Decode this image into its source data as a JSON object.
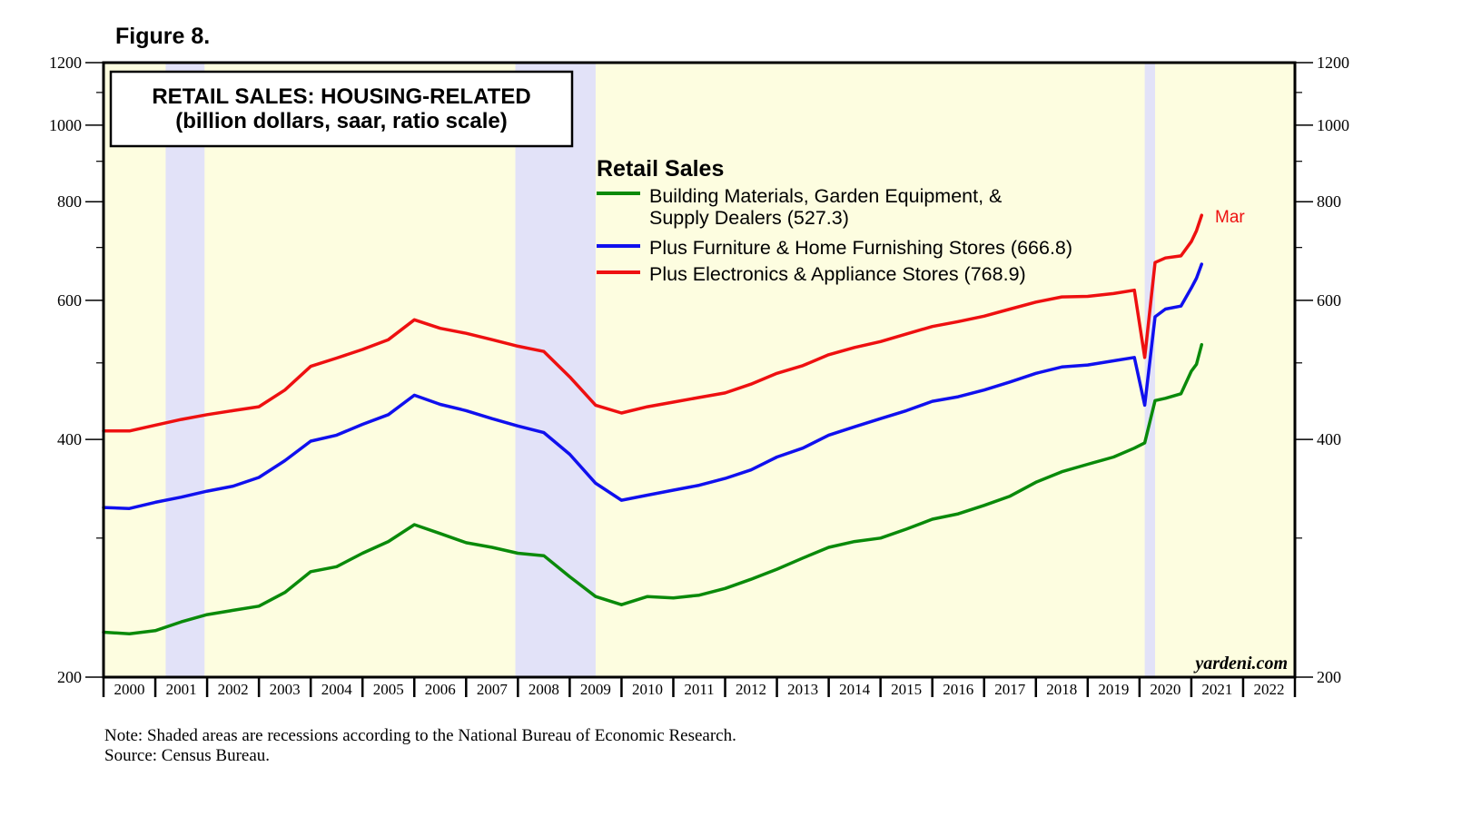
{
  "figure_label": "Figure 8.",
  "notes": {
    "line1": "Note: Shaded areas are recessions according to the National Bureau of Economic Research.",
    "line2": "Source: Census Bureau."
  },
  "colors": {
    "plot_background": "#fdfde0",
    "recession": "#e2e2f8",
    "building": "#0a8a0a",
    "furniture": "#1010ee",
    "electronics": "#ee1010"
  },
  "chart_data": {
    "type": "line",
    "title": "RETAIL SALES: HOUSING-RELATED",
    "subtitle": "(billion dollars, saar, ratio scale)",
    "legend_title": "Retail Sales",
    "yscale": "log",
    "ylim": [
      200,
      1200
    ],
    "xlim": [
      2000.0,
      2023.0
    ],
    "y_ticks_major": [
      200,
      400,
      600,
      800,
      1000,
      1200
    ],
    "y_ticks_minor": [
      300,
      500,
      700,
      900,
      1100
    ],
    "x_tick_labels": [
      "2000",
      "2001",
      "2002",
      "2003",
      "2004",
      "2005",
      "2006",
      "2007",
      "2008",
      "2009",
      "2010",
      "2011",
      "2012",
      "2013",
      "2014",
      "2015",
      "2016",
      "2017",
      "2018",
      "2019",
      "2020",
      "2021",
      "2022"
    ],
    "recessions": [
      [
        2001.2,
        2001.95
      ],
      [
        2007.95,
        2009.5
      ],
      [
        2020.1,
        2020.3
      ]
    ],
    "watermark": "yardeni.com",
    "end_label": "Mar",
    "x": [
      2000.0,
      2000.5,
      2001.0,
      2001.5,
      2002.0,
      2002.5,
      2003.0,
      2003.5,
      2004.0,
      2004.5,
      2005.0,
      2005.5,
      2006.0,
      2006.5,
      2007.0,
      2007.5,
      2008.0,
      2008.5,
      2009.0,
      2009.5,
      2010.0,
      2010.5,
      2011.0,
      2011.5,
      2012.0,
      2012.5,
      2013.0,
      2013.5,
      2014.0,
      2014.5,
      2015.0,
      2015.5,
      2016.0,
      2016.5,
      2017.0,
      2017.5,
      2018.0,
      2018.5,
      2019.0,
      2019.5,
      2019.9,
      2020.1,
      2020.3,
      2020.5,
      2020.8,
      2021.0,
      2021.1,
      2021.2
    ],
    "series": [
      {
        "name": "Building Materials, Garden Equipment, &",
        "name_line2": "Supply Dealers (527.3)",
        "color_key": "building",
        "values": [
          228,
          227,
          229,
          235,
          240,
          243,
          246,
          256,
          272,
          276,
          287,
          297,
          312,
          304,
          296,
          292,
          287,
          285,
          268,
          253,
          247,
          253,
          252,
          254,
          259,
          266,
          274,
          283,
          292,
          297,
          300,
          308,
          317,
          322,
          330,
          339,
          353,
          364,
          372,
          380,
          390,
          396,
          448,
          451,
          457,
          488,
          498,
          527.3
        ]
      },
      {
        "name": "Plus Furniture & Home Furnishing Stores (666.8)",
        "color_key": "furniture",
        "values": [
          328,
          327,
          333,
          338,
          344,
          349,
          358,
          376,
          398,
          405,
          418,
          430,
          455,
          443,
          435,
          425,
          416,
          408,
          383,
          352,
          335,
          340,
          345,
          350,
          357,
          366,
          380,
          390,
          405,
          415,
          425,
          435,
          447,
          453,
          462,
          473,
          485,
          494,
          497,
          503,
          508,
          442,
          572,
          585,
          590,
          622,
          640,
          666.8
        ]
      },
      {
        "name": "Plus Electronics & Appliance Stores (768.9)",
        "color_key": "electronics",
        "values": [
          410,
          410,
          417,
          424,
          430,
          435,
          440,
          462,
          495,
          507,
          520,
          535,
          567,
          553,
          545,
          535,
          525,
          517,
          480,
          442,
          432,
          440,
          446,
          452,
          458,
          470,
          485,
          496,
          512,
          523,
          532,
          544,
          556,
          564,
          573,
          585,
          597,
          606,
          607,
          612,
          618,
          508,
          670,
          679,
          683,
          712,
          735,
          768.9
        ]
      }
    ]
  }
}
